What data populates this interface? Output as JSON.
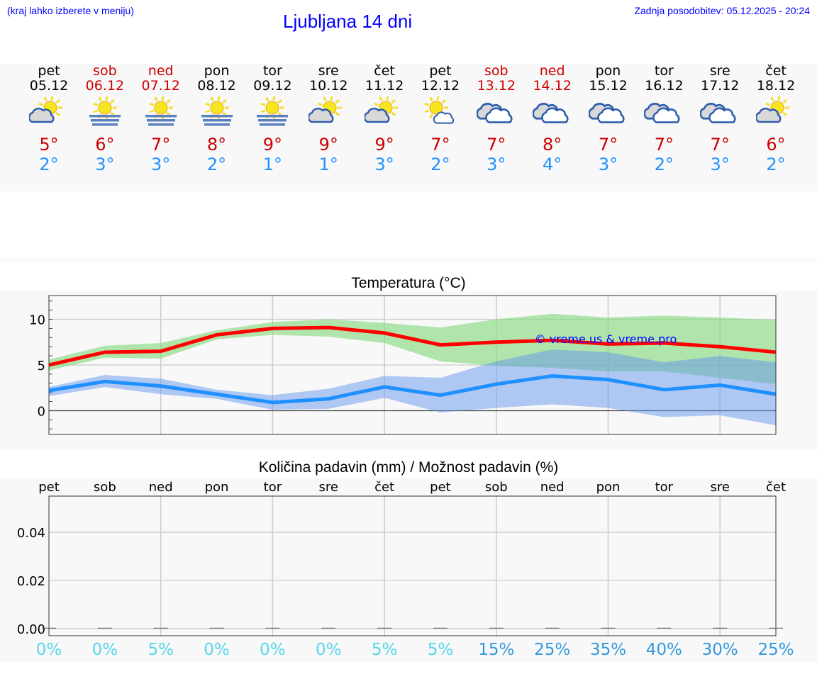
{
  "header": {
    "hint": "(kraj lahko izberete v meniju)",
    "title": "Ljubljana 14 dni",
    "updated": "Zadnja posodobitev: 05.12.2025 - 20:24"
  },
  "colors": {
    "weekend": "#cc0000",
    "max": "#cc0000",
    "min": "#1e90ff",
    "pct_low": "#55d7ee",
    "pct_high": "#3399dd"
  },
  "days": [
    {
      "name": "pet",
      "date": "05.12",
      "weekend": false,
      "icon": "partly-cloudy-icon",
      "max": "5°",
      "min": "2°"
    },
    {
      "name": "sob",
      "date": "06.12",
      "weekend": true,
      "icon": "sun-fog-icon",
      "max": "6°",
      "min": "3°"
    },
    {
      "name": "ned",
      "date": "07.12",
      "weekend": true,
      "icon": "sun-fog-icon",
      "max": "7°",
      "min": "3°"
    },
    {
      "name": "pon",
      "date": "08.12",
      "weekend": false,
      "icon": "sun-fog-icon",
      "max": "8°",
      "min": "2°"
    },
    {
      "name": "tor",
      "date": "09.12",
      "weekend": false,
      "icon": "sun-fog-icon",
      "max": "9°",
      "min": "1°"
    },
    {
      "name": "sre",
      "date": "10.12",
      "weekend": false,
      "icon": "partly-cloudy-icon",
      "max": "9°",
      "min": "1°"
    },
    {
      "name": "čet",
      "date": "11.12",
      "weekend": false,
      "icon": "partly-cloudy-icon",
      "max": "9°",
      "min": "3°"
    },
    {
      "name": "pet",
      "date": "12.12",
      "weekend": false,
      "icon": "mostly-sunny-icon",
      "max": "7°",
      "min": "2°"
    },
    {
      "name": "sob",
      "date": "13.12",
      "weekend": true,
      "icon": "cloudy-icon",
      "max": "7°",
      "min": "3°"
    },
    {
      "name": "ned",
      "date": "14.12",
      "weekend": true,
      "icon": "cloudy-icon",
      "max": "8°",
      "min": "4°"
    },
    {
      "name": "pon",
      "date": "15.12",
      "weekend": false,
      "icon": "cloudy-icon",
      "max": "7°",
      "min": "3°"
    },
    {
      "name": "tor",
      "date": "16.12",
      "weekend": false,
      "icon": "cloudy-icon",
      "max": "7°",
      "min": "2°"
    },
    {
      "name": "sre",
      "date": "17.12",
      "weekend": false,
      "icon": "cloudy-icon",
      "max": "7°",
      "min": "3°"
    },
    {
      "name": "čet",
      "date": "18.12",
      "weekend": false,
      "icon": "partly-cloudy-icon",
      "max": "6°",
      "min": "2°"
    }
  ],
  "chart_data": [
    {
      "type": "line",
      "title": "Temperatura (°C)",
      "ylim": [
        -2.6,
        12.6
      ],
      "yticks": [
        0,
        5,
        10
      ],
      "grid": true,
      "watermark": "© vreme.us & vreme.pro",
      "series": [
        {
          "color": "#ff0000",
          "values": [
            5.0,
            6.4,
            6.5,
            8.3,
            9.0,
            9.1,
            8.5,
            7.2,
            7.5,
            7.7,
            7.3,
            7.4,
            7.0,
            6.4
          ],
          "band_upper": [
            5.6,
            7.1,
            7.4,
            8.8,
            9.7,
            10.0,
            9.6,
            9.1,
            10.0,
            10.6,
            10.2,
            10.4,
            10.2,
            9.9
          ],
          "band_lower": [
            4.4,
            5.8,
            5.7,
            7.8,
            8.3,
            8.1,
            7.4,
            5.4,
            4.9,
            4.7,
            4.3,
            4.3,
            3.6,
            2.9
          ],
          "band_color": "#7fd877"
        },
        {
          "color": "#1e90ff",
          "values": [
            2.2,
            3.2,
            2.7,
            1.8,
            0.9,
            1.3,
            2.6,
            1.7,
            2.9,
            3.8,
            3.4,
            2.3,
            2.8,
            1.8
          ],
          "band_upper": [
            2.6,
            3.9,
            3.5,
            2.3,
            1.7,
            2.4,
            3.8,
            3.6,
            5.4,
            6.7,
            6.4,
            5.3,
            6.0,
            5.3
          ],
          "band_lower": [
            1.6,
            2.6,
            1.8,
            1.3,
            0.1,
            0.2,
            1.4,
            -0.2,
            0.3,
            0.7,
            0.3,
            -0.7,
            -0.5,
            -1.6
          ],
          "band_color": "#6495ed"
        }
      ]
    },
    {
      "type": "bar",
      "title": "Količina padavin (mm) / Možnost padavin (%)",
      "ylim": [
        -0.003,
        0.055
      ],
      "yticks": [
        "0.00",
        "0.02",
        "0.04"
      ],
      "ytick_values": [
        0,
        0.02,
        0.04
      ],
      "grid": true,
      "categories": [
        "pet",
        "sob",
        "ned",
        "pon",
        "tor",
        "sre",
        "čet",
        "pet",
        "sob",
        "ned",
        "pon",
        "tor",
        "sre",
        "čet"
      ],
      "values": [
        0,
        0,
        0,
        0,
        0,
        0,
        0,
        0,
        0,
        0,
        0,
        0,
        0,
        0
      ],
      "chance": [
        "0%",
        "0%",
        "5%",
        "0%",
        "0%",
        "0%",
        "5%",
        "5%",
        "15%",
        "25%",
        "35%",
        "40%",
        "30%",
        "25%"
      ],
      "chance_values": [
        0,
        0,
        5,
        0,
        0,
        0,
        5,
        5,
        15,
        25,
        35,
        40,
        30,
        25
      ]
    }
  ]
}
